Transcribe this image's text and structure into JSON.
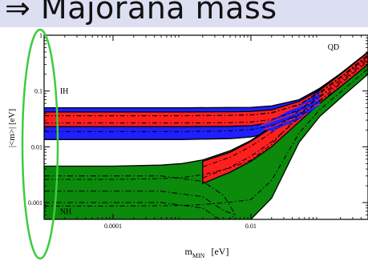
{
  "slide": {
    "title_fragment": "Majorana mass"
  },
  "chart_data": {
    "type": "area",
    "title": "",
    "xlabel": "m_MIN [eV]",
    "xlabel_main": "m",
    "xlabel_sub": "MIN",
    "xlabel_unit": "[eV]",
    "ylabel": "|<m>| [eV]",
    "x_scale": "log",
    "y_scale": "log",
    "xlim": [
      1e-05,
      0.5
    ],
    "ylim": [
      0.0005,
      1
    ],
    "x_ticks": [
      {
        "value": 0.0001,
        "label": "0.0001"
      },
      {
        "value": 0.01,
        "label": "0.01"
      }
    ],
    "y_ticks": [
      {
        "value": 1,
        "label": "1"
      },
      {
        "value": 0.1,
        "label": "0.1"
      },
      {
        "value": 0.01,
        "label": "0.01"
      },
      {
        "value": 0.001,
        "label": "0.001"
      }
    ],
    "region_labels": [
      {
        "text": "QD",
        "x": 0.13,
        "y": 0.55
      },
      {
        "text": "IH",
        "x": 1.7e-05,
        "y": 0.09
      },
      {
        "text": "NH",
        "x": 1.7e-05,
        "y": 0.00062
      }
    ],
    "series": [
      {
        "name": "IH (blue)",
        "color": "#1f1fff",
        "x": [
          1e-05,
          0.001,
          0.005,
          0.01,
          0.02,
          0.05,
          0.1,
          0.2,
          0.5
        ],
        "upper": [
          0.05,
          0.05,
          0.0505,
          0.051,
          0.054,
          0.07,
          0.112,
          0.206,
          0.503
        ],
        "lower": [
          0.0135,
          0.0135,
          0.014,
          0.015,
          0.018,
          0.03,
          0.055,
          0.1,
          0.25
        ]
      },
      {
        "name": "IH (red)",
        "color": "#ff1f1f",
        "x": [
          1e-05,
          0.001,
          0.005,
          0.01,
          0.02,
          0.05,
          0.1,
          0.2,
          0.5
        ],
        "upper": [
          0.042,
          0.042,
          0.0425,
          0.043,
          0.046,
          0.065,
          0.105,
          0.2,
          0.49
        ],
        "lower": [
          0.023,
          0.023,
          0.0233,
          0.024,
          0.027,
          0.04,
          0.07,
          0.13,
          0.33
        ]
      },
      {
        "name": "NH (green)",
        "color": "#0b8a0b",
        "x": [
          1e-05,
          0.0001,
          0.0005,
          0.001,
          0.002,
          0.005,
          0.01,
          0.02,
          0.05,
          0.1,
          0.2,
          0.5
        ],
        "upper": [
          0.0045,
          0.0045,
          0.0047,
          0.005,
          0.0058,
          0.0085,
          0.013,
          0.023,
          0.055,
          0.108,
          0.205,
          0.5
        ],
        "lower": [
          0.0005,
          0.0005,
          0.0005,
          0.0005,
          0.0005,
          0.0005,
          0.0005,
          0.0012,
          0.012,
          0.035,
          0.075,
          0.2
        ]
      },
      {
        "name": "NH (red)",
        "color": "#ff1f1f",
        "x": [
          0.002,
          0.005,
          0.01,
          0.02,
          0.05,
          0.1,
          0.2,
          0.5
        ],
        "upper": [
          0.0055,
          0.008,
          0.0125,
          0.022,
          0.052,
          0.103,
          0.2,
          0.49
        ],
        "lower": [
          0.0022,
          0.0035,
          0.0055,
          0.01,
          0.028,
          0.06,
          0.12,
          0.3
        ]
      }
    ],
    "grid": false,
    "annotation": "green ellipse highlighting the vertical axis"
  }
}
